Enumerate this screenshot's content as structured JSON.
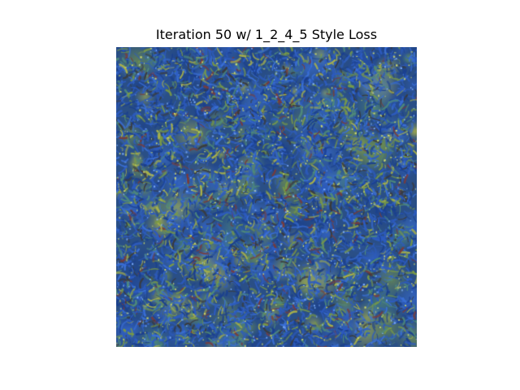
{
  "figure": {
    "title": "Iteration 50 w/ 1_2_4_5 Style Loss",
    "background_color": "#ffffff"
  },
  "image": {
    "description_kind": "style-transfer texture",
    "palette": [
      "#1a3f8f",
      "#2d5bbf",
      "#3a6fd6",
      "#4f8a7a",
      "#7a9a45",
      "#a8b04a",
      "#6a7a8a",
      "#3a3a3a",
      "#7a3a3a"
    ]
  }
}
